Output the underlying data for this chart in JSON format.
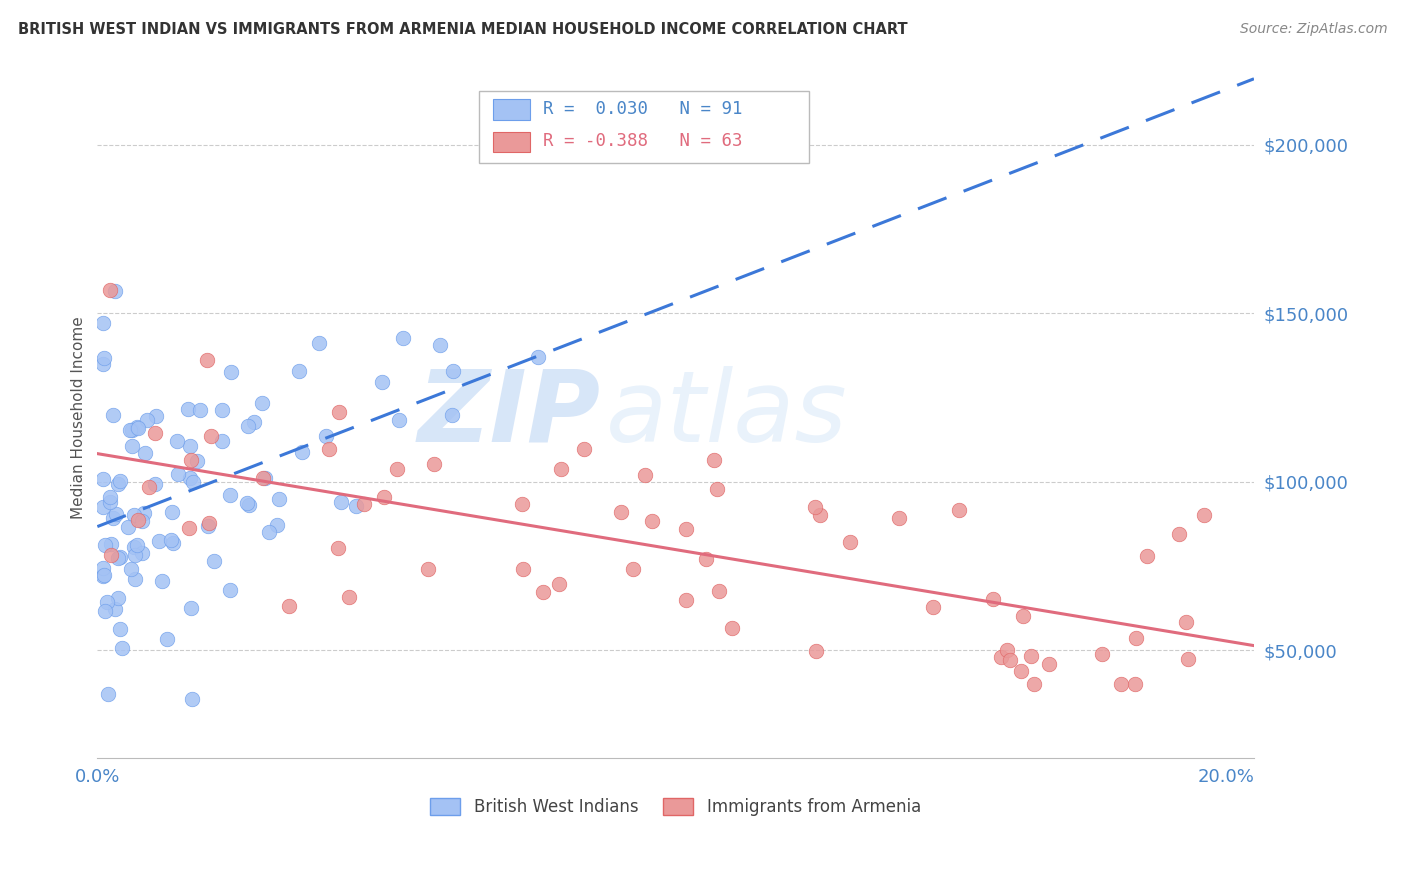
{
  "title": "BRITISH WEST INDIAN VS IMMIGRANTS FROM ARMENIA MEDIAN HOUSEHOLD INCOME CORRELATION CHART",
  "source": "Source: ZipAtlas.com",
  "ylabel": "Median Household Income",
  "ytick_labels": [
    "$50,000",
    "$100,000",
    "$150,000",
    "$200,000"
  ],
  "ytick_values": [
    50000,
    100000,
    150000,
    200000
  ],
  "ylim": [
    18000,
    220000
  ],
  "xlim": [
    0.0,
    0.205
  ],
  "watermark_zip": "ZIP",
  "watermark_atlas": "atlas",
  "blue_color": "#a4c2f4",
  "blue_edge_color": "#6d9eeb",
  "pink_color": "#ea9999",
  "pink_edge_color": "#e06666",
  "blue_line_color": "#3c78d8",
  "pink_line_color": "#e06b7d",
  "axis_label_color": "#4a86c8",
  "grid_color": "#cccccc",
  "legend_R_blue": "0.030",
  "legend_N_blue": "91",
  "legend_R_pink": "-0.388",
  "legend_N_pink": "63",
  "title_color": "#333333",
  "source_color": "#888888",
  "ylabel_color": "#555555"
}
